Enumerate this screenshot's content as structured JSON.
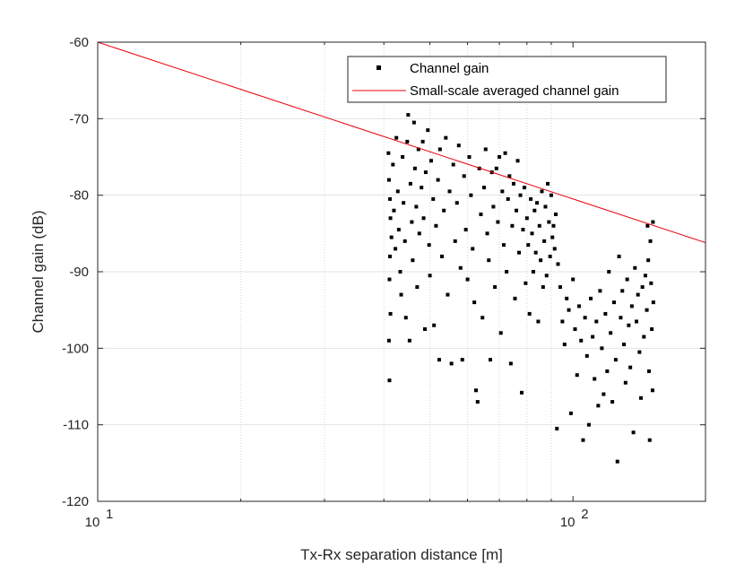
{
  "chart_data": {
    "type": "scatter",
    "title": "",
    "xlabel": "Tx-Rx separation distance [m]",
    "ylabel": "Channel gain (dB)",
    "x_scale": "log",
    "xlim": [
      10,
      190
    ],
    "ylim": [
      -120,
      -60
    ],
    "x_ticks": [
      {
        "value": 10,
        "base": "10",
        "exp": "1"
      },
      {
        "value": 100,
        "base": "10",
        "exp": "2"
      }
    ],
    "y_ticks": [
      {
        "value": -60,
        "label": "-60"
      },
      {
        "value": -70,
        "label": "-70"
      },
      {
        "value": -80,
        "label": "-80"
      },
      {
        "value": -90,
        "label": "-90"
      },
      {
        "value": -100,
        "label": "-100"
      },
      {
        "value": -110,
        "label": "-110"
      },
      {
        "value": -120,
        "label": "-120"
      }
    ],
    "grid": true,
    "legend_position": "top-right",
    "series": [
      {
        "name": "Channel gain",
        "kind": "markers",
        "color": "#000000",
        "points": [
          [
            40.9,
            -74.5
          ],
          [
            41.0,
            -78.0
          ],
          [
            41.2,
            -80.5
          ],
          [
            41.3,
            -83.0
          ],
          [
            41.5,
            -85.5
          ],
          [
            41.2,
            -88.0
          ],
          [
            41.1,
            -91.0
          ],
          [
            41.3,
            -95.5
          ],
          [
            41.0,
            -99.0
          ],
          [
            41.1,
            -104.2
          ],
          [
            41.8,
            -76.0
          ],
          [
            42.0,
            -82.0
          ],
          [
            42.3,
            -87.0
          ],
          [
            42.5,
            -72.5
          ],
          [
            42.8,
            -79.5
          ],
          [
            43.0,
            -84.5
          ],
          [
            43.3,
            -90.0
          ],
          [
            43.5,
            -93.0
          ],
          [
            43.8,
            -75.0
          ],
          [
            44.0,
            -81.0
          ],
          [
            44.3,
            -86.0
          ],
          [
            44.5,
            -96.0
          ],
          [
            44.8,
            -73.0
          ],
          [
            45.0,
            -69.5
          ],
          [
            45.3,
            -99.0
          ],
          [
            45.5,
            -78.5
          ],
          [
            45.8,
            -83.5
          ],
          [
            46.0,
            -88.5
          ],
          [
            46.3,
            -70.5
          ],
          [
            46.5,
            -76.5
          ],
          [
            46.8,
            -81.5
          ],
          [
            47.0,
            -92.0
          ],
          [
            47.3,
            -74.0
          ],
          [
            47.5,
            -85.0
          ],
          [
            48.0,
            -79.0
          ],
          [
            48.3,
            -73.0
          ],
          [
            48.5,
            -83.0
          ],
          [
            48.8,
            -97.5
          ],
          [
            49.0,
            -77.0
          ],
          [
            49.5,
            -71.5
          ],
          [
            49.8,
            -86.5
          ],
          [
            50.0,
            -90.5
          ],
          [
            50.3,
            -75.5
          ],
          [
            50.8,
            -80.5
          ],
          [
            51.0,
            -97.0
          ],
          [
            51.5,
            -84.0
          ],
          [
            52.0,
            -78.0
          ],
          [
            52.3,
            -101.5
          ],
          [
            52.5,
            -74.0
          ],
          [
            53.0,
            -88.0
          ],
          [
            53.5,
            -82.0
          ],
          [
            54.0,
            -72.5
          ],
          [
            54.5,
            -93.0
          ],
          [
            55.0,
            -79.5
          ],
          [
            55.5,
            -102.0
          ],
          [
            56.0,
            -76.0
          ],
          [
            56.5,
            -86.0
          ],
          [
            57.0,
            -81.0
          ],
          [
            57.5,
            -73.5
          ],
          [
            58.0,
            -89.5
          ],
          [
            58.5,
            -101.5
          ],
          [
            59.0,
            -77.5
          ],
          [
            59.5,
            -84.5
          ],
          [
            60.0,
            -91.0
          ],
          [
            60.5,
            -75.0
          ],
          [
            61.0,
            -80.0
          ],
          [
            61.5,
            -87.0
          ],
          [
            62.0,
            -94.0
          ],
          [
            62.5,
            -105.5
          ],
          [
            63.0,
            -107.0
          ],
          [
            63.5,
            -76.5
          ],
          [
            64.0,
            -82.5
          ],
          [
            64.5,
            -96.0
          ],
          [
            65.0,
            -79.0
          ],
          [
            65.5,
            -74.0
          ],
          [
            66.0,
            -85.0
          ],
          [
            66.5,
            -88.5
          ],
          [
            67.0,
            -101.5
          ],
          [
            67.5,
            -77.0
          ],
          [
            68.0,
            -81.5
          ],
          [
            68.5,
            -92.0
          ],
          [
            69.0,
            -76.5
          ],
          [
            69.5,
            -83.5
          ],
          [
            70.0,
            -75.0
          ],
          [
            70.5,
            -98.0
          ],
          [
            71.0,
            -79.5
          ],
          [
            71.5,
            -86.5
          ],
          [
            72.0,
            -74.5
          ],
          [
            72.5,
            -90.0
          ],
          [
            73.0,
            -80.5
          ],
          [
            73.5,
            -77.5
          ],
          [
            74.0,
            -102.0
          ],
          [
            74.5,
            -84.0
          ],
          [
            75.0,
            -78.5
          ],
          [
            75.5,
            -93.5
          ],
          [
            76.0,
            -82.0
          ],
          [
            76.5,
            -75.5
          ],
          [
            77.0,
            -87.5
          ],
          [
            77.5,
            -80.0
          ],
          [
            78.0,
            -105.8
          ],
          [
            78.5,
            -84.5
          ],
          [
            79.0,
            -79.0
          ],
          [
            79.5,
            -91.5
          ],
          [
            80.0,
            -83.0
          ],
          [
            80.5,
            -86.5
          ],
          [
            81.0,
            -95.5
          ],
          [
            81.5,
            -80.5
          ],
          [
            82.0,
            -85.0
          ],
          [
            82.5,
            -90.0
          ],
          [
            83.0,
            -82.0
          ],
          [
            83.5,
            -87.5
          ],
          [
            84.0,
            -81.0
          ],
          [
            84.5,
            -96.5
          ],
          [
            85.0,
            -84.0
          ],
          [
            85.5,
            -88.5
          ],
          [
            86.0,
            -79.5
          ],
          [
            86.5,
            -92.0
          ],
          [
            87.0,
            -86.0
          ],
          [
            87.5,
            -81.5
          ],
          [
            88.0,
            -90.5
          ],
          [
            88.5,
            -78.5
          ],
          [
            89.0,
            -83.5
          ],
          [
            89.5,
            -88.0
          ],
          [
            90.0,
            -80.0
          ],
          [
            90.5,
            -85.5
          ],
          [
            91.0,
            -84.0
          ],
          [
            91.5,
            -87.0
          ],
          [
            92.0,
            -82.5
          ],
          [
            92.5,
            -110.5
          ],
          [
            93.0,
            -89.0
          ],
          [
            94.0,
            -92.0
          ],
          [
            95.0,
            -96.5
          ],
          [
            96.0,
            -99.5
          ],
          [
            97.0,
            -93.5
          ],
          [
            98.0,
            -95.0
          ],
          [
            99.0,
            -108.5
          ],
          [
            100.0,
            -91.0
          ],
          [
            101.0,
            -97.5
          ],
          [
            102.0,
            -103.5
          ],
          [
            103.0,
            -94.5
          ],
          [
            104.0,
            -99.0
          ],
          [
            105.0,
            -112.0
          ],
          [
            106.0,
            -96.0
          ],
          [
            107.0,
            -101.0
          ],
          [
            108.0,
            -110.0
          ],
          [
            109.0,
            -93.5
          ],
          [
            110.0,
            -98.5
          ],
          [
            111.0,
            -104.0
          ],
          [
            112.0,
            -96.5
          ],
          [
            113.0,
            -107.5
          ],
          [
            114.0,
            -92.5
          ],
          [
            115.0,
            -100.0
          ],
          [
            116.0,
            -106.0
          ],
          [
            117.0,
            -95.5
          ],
          [
            118.0,
            -103.0
          ],
          [
            119.0,
            -90.0
          ],
          [
            120.0,
            -98.0
          ],
          [
            121.0,
            -107.0
          ],
          [
            122.0,
            -94.0
          ],
          [
            123.0,
            -101.5
          ],
          [
            124.0,
            -114.8
          ],
          [
            125.0,
            -88.0
          ],
          [
            126.0,
            -96.0
          ],
          [
            127.0,
            -92.5
          ],
          [
            128.0,
            -99.5
          ],
          [
            129.0,
            -104.5
          ],
          [
            130.0,
            -91.0
          ],
          [
            131.0,
            -97.0
          ],
          [
            132.0,
            -102.5
          ],
          [
            133.0,
            -94.5
          ],
          [
            134.0,
            -111.0
          ],
          [
            135.0,
            -89.5
          ],
          [
            136.0,
            -96.5
          ],
          [
            137.0,
            -93.0
          ],
          [
            138.0,
            -100.5
          ],
          [
            139.0,
            -106.5
          ],
          [
            140.0,
            -92.0
          ],
          [
            141.0,
            -98.5
          ],
          [
            142.0,
            -90.5
          ],
          [
            143.0,
            -95.0
          ],
          [
            143.5,
            -84.0
          ],
          [
            144.0,
            -88.5
          ],
          [
            144.5,
            -103.0
          ],
          [
            145.0,
            -112.0
          ],
          [
            145.5,
            -86.0
          ],
          [
            146.0,
            -91.5
          ],
          [
            146.5,
            -97.5
          ],
          [
            147.0,
            -105.5
          ],
          [
            147.3,
            -83.5
          ],
          [
            147.6,
            -94.0
          ]
        ]
      },
      {
        "name": "Small-scale averaged channel gain",
        "kind": "line",
        "color": "#e8000b",
        "points": [
          [
            10,
            -60
          ],
          [
            190,
            -86.2
          ]
        ]
      }
    ]
  }
}
